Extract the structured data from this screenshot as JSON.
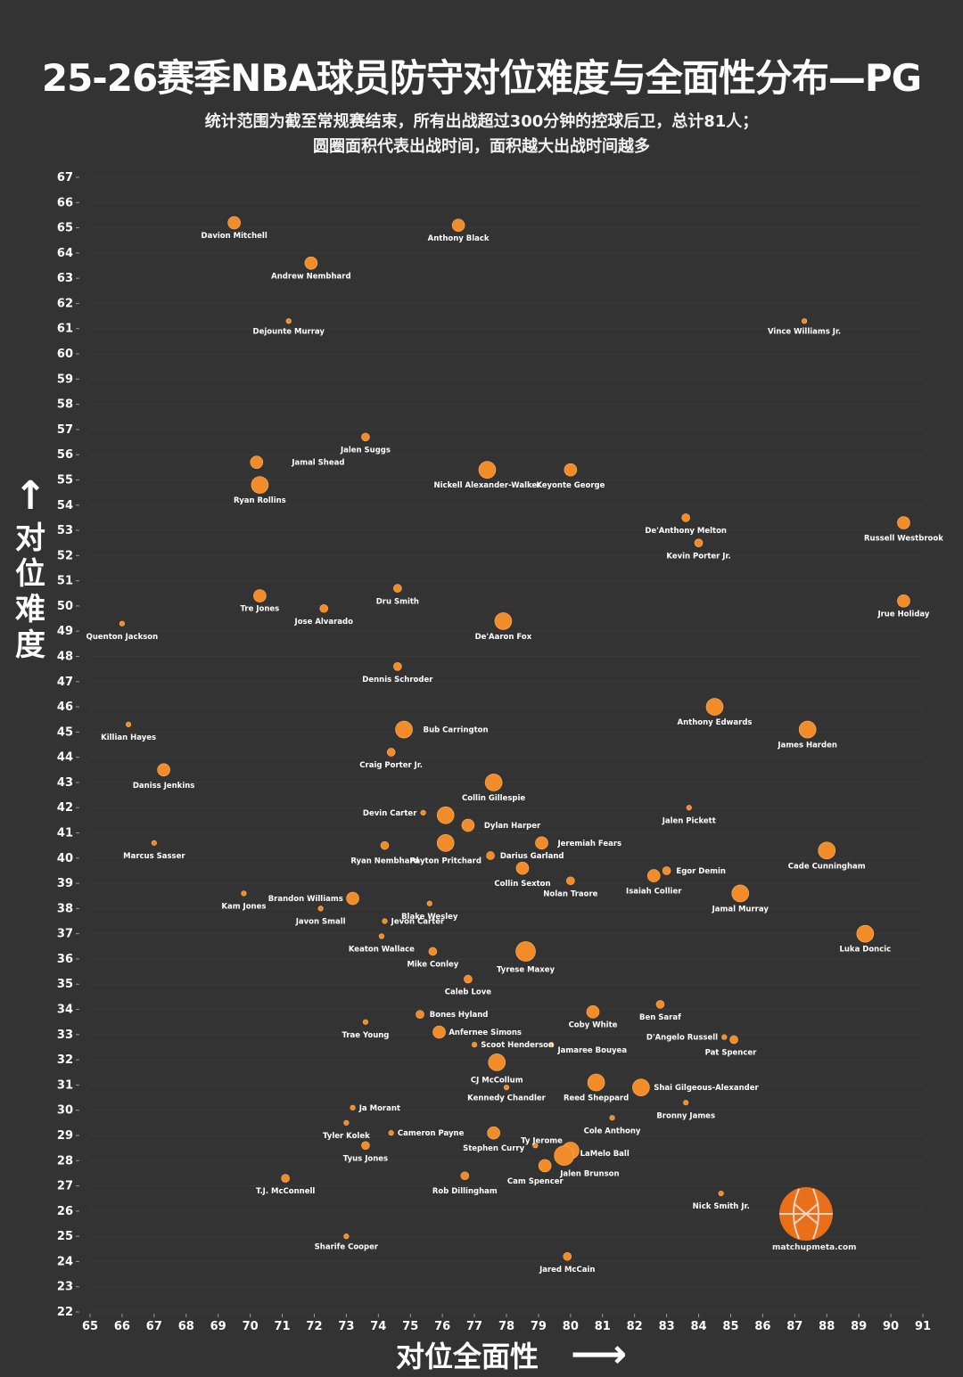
{
  "title": "25-26赛季NBA球员防守对位难度与全面性分布—PG",
  "subtitle_line1": "统计范围为截至常规赛结束，所有出战超过300分钟的控球后卫，总计81人；",
  "subtitle_line2": "圆圈面积代表出战时间，面积越大出战时间越多",
  "y_axis_label_chars": [
    "对",
    "位",
    "难",
    "度"
  ],
  "x_axis_label": "对位全面性",
  "logo_text": "matchupmeta.com",
  "colors": {
    "background": "#333333",
    "point": "#f28c28",
    "text": "#ffffff",
    "logo": "#ea6f1a"
  },
  "chart_data": {
    "type": "scatter",
    "xlabel": "对位全面性",
    "ylabel": "对位难度",
    "xlim": [
      65,
      91
    ],
    "ylim": [
      22,
      67
    ],
    "x_ticks": [
      65,
      66,
      67,
      68,
      69,
      70,
      71,
      72,
      73,
      74,
      75,
      76,
      77,
      78,
      79,
      80,
      81,
      82,
      83,
      84,
      85,
      86,
      87,
      88,
      89,
      90,
      91
    ],
    "y_ticks": [
      22,
      23,
      24,
      25,
      26,
      27,
      28,
      29,
      30,
      31,
      32,
      33,
      34,
      35,
      36,
      37,
      38,
      39,
      40,
      41,
      42,
      43,
      44,
      45,
      46,
      47,
      48,
      49,
      50,
      51,
      52,
      53,
      54,
      55,
      56,
      57,
      58,
      59,
      60,
      61,
      62,
      63,
      64,
      65,
      66,
      67
    ],
    "grid": true,
    "point_size_meaning": "出战时间",
    "points": [
      {
        "name": "Davion Mitchell",
        "x": 69.5,
        "y": 65.2,
        "size": 2
      },
      {
        "name": "Anthony Black",
        "x": 76.5,
        "y": 65.1,
        "size": 2
      },
      {
        "name": "Andrew Nembhard",
        "x": 71.9,
        "y": 63.6,
        "size": 2
      },
      {
        "name": "Dejounte Murray",
        "x": 71.2,
        "y": 61.3,
        "size": 0
      },
      {
        "name": "Vince Williams Jr.",
        "x": 87.3,
        "y": 61.3,
        "size": 0
      },
      {
        "name": "Jalen Suggs",
        "x": 73.6,
        "y": 56.7,
        "size": 1
      },
      {
        "name": "Jamal Shead",
        "x": 70.2,
        "y": 55.7,
        "size": 2
      },
      {
        "name": "Ryan Rollins",
        "x": 70.3,
        "y": 54.8,
        "size": 3
      },
      {
        "name": "Nickell Alexander-Walker",
        "x": 77.4,
        "y": 55.4,
        "size": 3
      },
      {
        "name": "Keyonte George",
        "x": 80.0,
        "y": 55.4,
        "size": 2
      },
      {
        "name": "De'Anthony Melton",
        "x": 83.6,
        "y": 53.5,
        "size": 1
      },
      {
        "name": "Kevin Porter Jr.",
        "x": 84.0,
        "y": 52.5,
        "size": 1
      },
      {
        "name": "Russell Westbrook",
        "x": 90.4,
        "y": 53.3,
        "size": 2
      },
      {
        "name": "Tre Jones",
        "x": 70.3,
        "y": 50.4,
        "size": 2
      },
      {
        "name": "Jose Alvarado",
        "x": 72.3,
        "y": 49.9,
        "size": 1
      },
      {
        "name": "Dru Smith",
        "x": 74.6,
        "y": 50.7,
        "size": 1
      },
      {
        "name": "Jrue Holiday",
        "x": 90.4,
        "y": 50.2,
        "size": 2
      },
      {
        "name": "Quenton Jackson",
        "x": 66.0,
        "y": 49.3,
        "size": 0
      },
      {
        "name": "De'Aaron Fox",
        "x": 77.9,
        "y": 49.4,
        "size": 3
      },
      {
        "name": "Dennis Schroder",
        "x": 74.6,
        "y": 47.6,
        "size": 1
      },
      {
        "name": "Anthony Edwards",
        "x": 84.5,
        "y": 46.0,
        "size": 3
      },
      {
        "name": "James Harden",
        "x": 87.4,
        "y": 45.1,
        "size": 3
      },
      {
        "name": "Killian Hayes",
        "x": 66.2,
        "y": 45.3,
        "size": 0
      },
      {
        "name": "Bub Carrington",
        "x": 74.8,
        "y": 45.1,
        "size": 3
      },
      {
        "name": "Craig Porter Jr.",
        "x": 74.4,
        "y": 44.2,
        "size": 1
      },
      {
        "name": "Daniss Jenkins",
        "x": 67.3,
        "y": 43.5,
        "size": 2
      },
      {
        "name": "Collin Gillespie",
        "x": 77.6,
        "y": 43.0,
        "size": 3
      },
      {
        "name": "Jalen Pickett",
        "x": 83.7,
        "y": 42.0,
        "size": 0
      },
      {
        "name": "Devin Carter",
        "x": 75.4,
        "y": 41.8,
        "size": 0
      },
      {
        "name": "Payton Pritchard",
        "x": 76.1,
        "y": 41.7,
        "size": 3
      },
      {
        "name": "Dylan Harper",
        "x": 76.8,
        "y": 41.3,
        "size": 2
      },
      {
        "name": "Marcus Sasser",
        "x": 67.0,
        "y": 40.6,
        "size": 0
      },
      {
        "name": "Ryan Nembhard",
        "x": 74.2,
        "y": 40.5,
        "size": 1
      },
      {
        "name": "Payton Pritchard (2)",
        "x": 76.1,
        "y": 40.6,
        "size": 3
      },
      {
        "name": "Jeremiah Fears",
        "x": 79.1,
        "y": 40.6,
        "size": 2
      },
      {
        "name": "Darius Garland",
        "x": 77.5,
        "y": 40.1,
        "size": 1
      },
      {
        "name": "Cade Cunningham",
        "x": 88.0,
        "y": 40.3,
        "size": 3
      },
      {
        "name": "Collin Sexton",
        "x": 78.5,
        "y": 39.6,
        "size": 2
      },
      {
        "name": "Egor Demin",
        "x": 83.0,
        "y": 39.5,
        "size": 1
      },
      {
        "name": "Isaiah Collier",
        "x": 82.6,
        "y": 39.3,
        "size": 2
      },
      {
        "name": "Nolan Traore",
        "x": 80.0,
        "y": 39.1,
        "size": 1
      },
      {
        "name": "Jamal Murray",
        "x": 85.3,
        "y": 38.6,
        "size": 3
      },
      {
        "name": "Kam Jones",
        "x": 69.8,
        "y": 38.6,
        "size": 0
      },
      {
        "name": "Brandon Williams",
        "x": 73.2,
        "y": 38.4,
        "size": 2
      },
      {
        "name": "Javon Small",
        "x": 72.2,
        "y": 38.0,
        "size": 0
      },
      {
        "name": "Blake Wesley",
        "x": 75.6,
        "y": 38.2,
        "size": 0
      },
      {
        "name": "Jevon Carter",
        "x": 74.2,
        "y": 37.5,
        "size": 0
      },
      {
        "name": "Luka Doncic",
        "x": 89.2,
        "y": 37.0,
        "size": 3
      },
      {
        "name": "Keaton Wallace",
        "x": 74.1,
        "y": 36.9,
        "size": 0
      },
      {
        "name": "Mike Conley",
        "x": 75.7,
        "y": 36.3,
        "size": 1
      },
      {
        "name": "Tyrese Maxey",
        "x": 78.6,
        "y": 36.3,
        "size": 4
      },
      {
        "name": "Caleb Love",
        "x": 76.8,
        "y": 35.2,
        "size": 1
      },
      {
        "name": "Ben Saraf",
        "x": 82.8,
        "y": 34.2,
        "size": 1
      },
      {
        "name": "Bones Hyland",
        "x": 75.3,
        "y": 33.8,
        "size": 1
      },
      {
        "name": "Coby White",
        "x": 80.7,
        "y": 33.9,
        "size": 2
      },
      {
        "name": "Trae Young",
        "x": 73.6,
        "y": 33.5,
        "size": 0
      },
      {
        "name": "Anfernee Simons",
        "x": 75.9,
        "y": 33.1,
        "size": 2
      },
      {
        "name": "D'Angelo Russell",
        "x": 84.8,
        "y": 32.9,
        "size": 0
      },
      {
        "name": "Pat Spencer",
        "x": 85.1,
        "y": 32.8,
        "size": 1
      },
      {
        "name": "Scoot Henderson",
        "x": 77.0,
        "y": 32.6,
        "size": 0
      },
      {
        "name": "Jamaree Bouyea",
        "x": 79.4,
        "y": 32.6,
        "size": 0
      },
      {
        "name": "CJ McCollum",
        "x": 77.7,
        "y": 31.9,
        "size": 3
      },
      {
        "name": "Kennedy Chandler",
        "x": 78.0,
        "y": 30.9,
        "size": 0
      },
      {
        "name": "Reed Sheppard",
        "x": 80.8,
        "y": 31.1,
        "size": 3
      },
      {
        "name": "Shai Gilgeous-Alexander",
        "x": 82.2,
        "y": 30.9,
        "size": 3
      },
      {
        "name": "Bronny James",
        "x": 83.6,
        "y": 30.3,
        "size": 0
      },
      {
        "name": "Ja Morant",
        "x": 73.2,
        "y": 30.1,
        "size": 0
      },
      {
        "name": "Cole Anthony",
        "x": 81.3,
        "y": 29.7,
        "size": 0
      },
      {
        "name": "Tyler Kolek",
        "x": 73.0,
        "y": 29.5,
        "size": 0
      },
      {
        "name": "Cameron Payne",
        "x": 74.4,
        "y": 29.1,
        "size": 0
      },
      {
        "name": "Stephen Curry",
        "x": 77.6,
        "y": 29.1,
        "size": 2
      },
      {
        "name": "Ty Jerome",
        "x": 78.9,
        "y": 28.6,
        "size": 0
      },
      {
        "name": "LaMelo Ball",
        "x": 80.0,
        "y": 28.4,
        "size": 3
      },
      {
        "name": "Jalen Brunson",
        "x": 79.8,
        "y": 28.2,
        "size": 4
      },
      {
        "name": "Tyus Jones",
        "x": 73.6,
        "y": 28.6,
        "size": 1
      },
      {
        "name": "Cam Spencer",
        "x": 79.2,
        "y": 27.8,
        "size": 2
      },
      {
        "name": "Rob Dillingham",
        "x": 76.7,
        "y": 27.4,
        "size": 1
      },
      {
        "name": "T.J. McConnell",
        "x": 71.1,
        "y": 27.3,
        "size": 1
      },
      {
        "name": "Nick Smith Jr.",
        "x": 84.7,
        "y": 26.7,
        "size": 0
      },
      {
        "name": "Sharife Cooper",
        "x": 73.0,
        "y": 25.0,
        "size": 0
      },
      {
        "name": "Jared McCain",
        "x": 79.9,
        "y": 24.2,
        "size": 1
      }
    ],
    "labels": [
      {
        "text": "Davion Mitchell",
        "x": 69.5,
        "y": 64.7
      },
      {
        "text": "Anthony Black",
        "x": 76.5,
        "y": 64.6
      },
      {
        "text": "Andrew Nembhard",
        "x": 71.9,
        "y": 63.1
      },
      {
        "text": "Dejounte Murray",
        "x": 71.2,
        "y": 60.9
      },
      {
        "text": "Vince Williams Jr.",
        "x": 87.3,
        "y": 60.9
      },
      {
        "text": "Jalen Suggs",
        "x": 73.6,
        "y": 56.2
      },
      {
        "text": "Jamal Shead",
        "x": 71.3,
        "y": 55.7,
        "align": "start"
      },
      {
        "text": "Ryan Rollins",
        "x": 70.3,
        "y": 54.2
      },
      {
        "text": "Nickell Alexander-Walker",
        "x": 77.4,
        "y": 54.8
      },
      {
        "text": "Keyonte George",
        "x": 80.0,
        "y": 54.8
      },
      {
        "text": "De'Anthony Melton",
        "x": 83.6,
        "y": 53.0
      },
      {
        "text": "Kevin Porter Jr.",
        "x": 84.0,
        "y": 52.0
      },
      {
        "text": "Russell Westbrook",
        "x": 90.4,
        "y": 52.7
      },
      {
        "text": "Tre Jones",
        "x": 70.3,
        "y": 49.9
      },
      {
        "text": "Jose Alvarado",
        "x": 72.3,
        "y": 49.4
      },
      {
        "text": "Dru Smith",
        "x": 74.6,
        "y": 50.2
      },
      {
        "text": "Jrue Holiday",
        "x": 90.4,
        "y": 49.7
      },
      {
        "text": "Quenton Jackson",
        "x": 66.0,
        "y": 48.8
      },
      {
        "text": "De'Aaron Fox",
        "x": 77.9,
        "y": 48.8
      },
      {
        "text": "Dennis Schroder",
        "x": 74.6,
        "y": 47.1
      },
      {
        "text": "Anthony Edwards",
        "x": 84.5,
        "y": 45.4
      },
      {
        "text": "James Harden",
        "x": 87.4,
        "y": 44.5
      },
      {
        "text": "Killian Hayes",
        "x": 66.2,
        "y": 44.8
      },
      {
        "text": "Bub Carrington",
        "x": 75.4,
        "y": 45.1,
        "align": "start"
      },
      {
        "text": "Craig Porter Jr.",
        "x": 74.4,
        "y": 43.7
      },
      {
        "text": "Daniss Jenkins",
        "x": 67.3,
        "y": 42.9
      },
      {
        "text": "Collin Gillespie",
        "x": 77.6,
        "y": 42.4
      },
      {
        "text": "Jalen Pickett",
        "x": 83.7,
        "y": 41.5
      },
      {
        "text": "Devin Carter",
        "x": 75.2,
        "y": 41.8,
        "align": "end"
      },
      {
        "text": "Dylan Harper",
        "x": 77.3,
        "y": 41.3,
        "align": "start"
      },
      {
        "text": "Marcus Sasser",
        "x": 67.0,
        "y": 40.1
      },
      {
        "text": "Ryan Nembhard",
        "x": 74.2,
        "y": 39.9
      },
      {
        "text": "Payton Pritchard",
        "x": 76.1,
        "y": 39.9
      },
      {
        "text": "Jeremiah Fears",
        "x": 79.6,
        "y": 40.6,
        "align": "start"
      },
      {
        "text": "Darius Garland",
        "x": 77.8,
        "y": 40.1,
        "align": "start"
      },
      {
        "text": "Cade Cunningham",
        "x": 88.0,
        "y": 39.7
      },
      {
        "text": "Collin Sexton",
        "x": 78.5,
        "y": 39.0
      },
      {
        "text": "Egor Demin",
        "x": 83.3,
        "y": 39.5,
        "align": "start"
      },
      {
        "text": "Isaiah Collier",
        "x": 82.6,
        "y": 38.7
      },
      {
        "text": "Nolan Traore",
        "x": 80.0,
        "y": 38.6
      },
      {
        "text": "Jamal Murray",
        "x": 85.3,
        "y": 38.0
      },
      {
        "text": "Kam Jones",
        "x": 69.8,
        "y": 38.1
      },
      {
        "text": "Brandon Williams",
        "x": 72.9,
        "y": 38.4,
        "align": "end"
      },
      {
        "text": "Javon Small",
        "x": 72.2,
        "y": 37.5
      },
      {
        "text": "Blake Wesley",
        "x": 75.6,
        "y": 37.7
      },
      {
        "text": "Jevon Carter",
        "x": 74.4,
        "y": 37.5,
        "align": "start"
      },
      {
        "text": "Luka Doncic",
        "x": 89.2,
        "y": 36.4
      },
      {
        "text": "Keaton Wallace",
        "x": 74.1,
        "y": 36.4
      },
      {
        "text": "Mike Conley",
        "x": 75.7,
        "y": 35.8
      },
      {
        "text": "Tyrese Maxey",
        "x": 78.6,
        "y": 35.6
      },
      {
        "text": "Caleb Love",
        "x": 76.8,
        "y": 34.7
      },
      {
        "text": "Ben Saraf",
        "x": 82.8,
        "y": 33.7
      },
      {
        "text": "Bones Hyland",
        "x": 75.6,
        "y": 33.8,
        "align": "start"
      },
      {
        "text": "Coby White",
        "x": 80.7,
        "y": 33.4
      },
      {
        "text": "Trae Young",
        "x": 73.6,
        "y": 33.0
      },
      {
        "text": "Anfernee Simons",
        "x": 76.2,
        "y": 33.1,
        "align": "start"
      },
      {
        "text": "D'Angelo Russell",
        "x": 84.6,
        "y": 32.9,
        "align": "end"
      },
      {
        "text": "Pat Spencer",
        "x": 85.0,
        "y": 32.3
      },
      {
        "text": "Scoot Henderson",
        "x": 77.2,
        "y": 32.6,
        "align": "start"
      },
      {
        "text": "Jamaree Bouyea",
        "x": 79.6,
        "y": 32.4,
        "align": "start"
      },
      {
        "text": "CJ McCollum",
        "x": 77.7,
        "y": 31.2
      },
      {
        "text": "Kennedy Chandler",
        "x": 78.0,
        "y": 30.5
      },
      {
        "text": "Reed Sheppard",
        "x": 80.8,
        "y": 30.5
      },
      {
        "text": "Shai Gilgeous-Alexander",
        "x": 82.6,
        "y": 30.9,
        "align": "start"
      },
      {
        "text": "Bronny James",
        "x": 83.6,
        "y": 29.8
      },
      {
        "text": "Ja Morant",
        "x": 73.4,
        "y": 30.1,
        "align": "start"
      },
      {
        "text": "Cole Anthony",
        "x": 81.3,
        "y": 29.2
      },
      {
        "text": "Tyler Kolek",
        "x": 73.0,
        "y": 29.0
      },
      {
        "text": "Cameron Payne",
        "x": 74.6,
        "y": 29.1,
        "align": "start"
      },
      {
        "text": "Stephen Curry",
        "x": 77.6,
        "y": 28.5
      },
      {
        "text": "Ty Jerome",
        "x": 79.1,
        "y": 28.8
      },
      {
        "text": "LaMelo Ball",
        "x": 80.3,
        "y": 28.3,
        "align": "start"
      },
      {
        "text": "Jalen Brunson",
        "x": 80.6,
        "y": 27.5
      },
      {
        "text": "Tyus Jones",
        "x": 73.6,
        "y": 28.1
      },
      {
        "text": "Cam Spencer",
        "x": 78.9,
        "y": 27.2
      },
      {
        "text": "Rob Dillingham",
        "x": 76.7,
        "y": 26.8
      },
      {
        "text": "T.J. McConnell",
        "x": 71.1,
        "y": 26.8
      },
      {
        "text": "Nick Smith Jr.",
        "x": 84.7,
        "y": 26.2
      },
      {
        "text": "Sharife Cooper",
        "x": 73.0,
        "y": 24.6
      },
      {
        "text": "Jared McCain",
        "x": 79.9,
        "y": 23.7
      }
    ]
  }
}
